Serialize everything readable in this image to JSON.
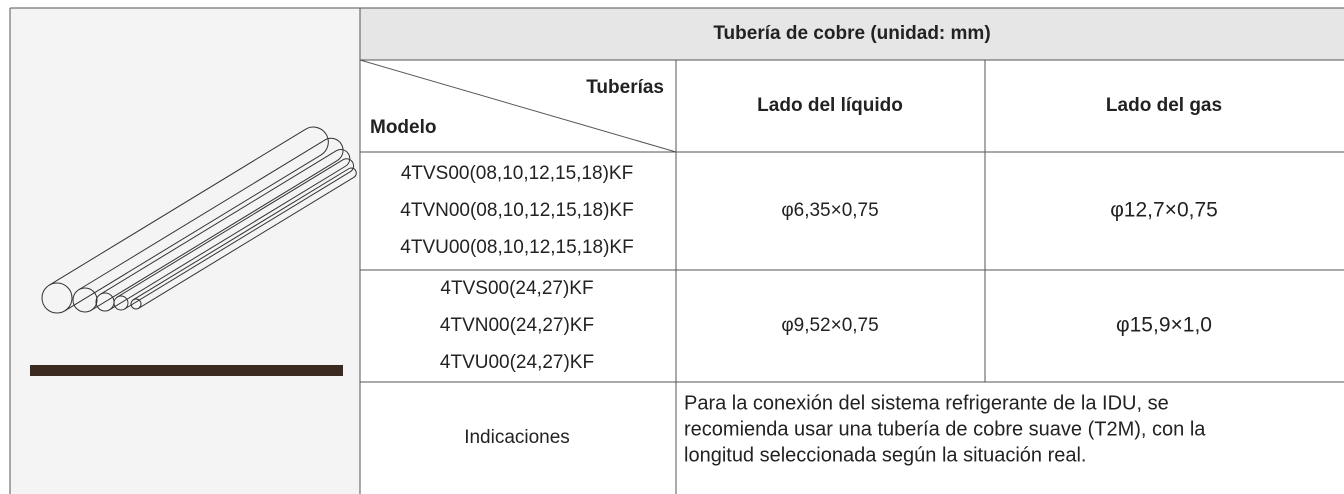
{
  "header": {
    "title": "Tubería de cobre (unidad: mm)"
  },
  "columns": {
    "pipes": "Tuberías",
    "model": "Modelo",
    "liquid": "Lado del líquido",
    "gas": "Lado del gas"
  },
  "rows": [
    {
      "models": [
        "4TVS00(08,10,12,15,18)KF",
        "4TVN00(08,10,12,15,18)KF",
        "4TVU00(08,10,12,15,18)KF"
      ],
      "liquid": "φ6,35×0,75",
      "gas": "φ12,7×0,75"
    },
    {
      "models": [
        "4TVS00(24,27)KF",
        "4TVN00(24,27)KF",
        "4TVU00(24,27)KF"
      ],
      "liquid": "φ9,52×0,75",
      "gas": "φ15,9×1,0"
    }
  ],
  "note": {
    "label": "Indicaciones",
    "lines": [
      "Para la conexión del sistema refrigerante de la IDU, se",
      "recomienda usar una tubería de cobre suave (T2M), con la",
      "longitud seleccionada según la situación real."
    ]
  }
}
